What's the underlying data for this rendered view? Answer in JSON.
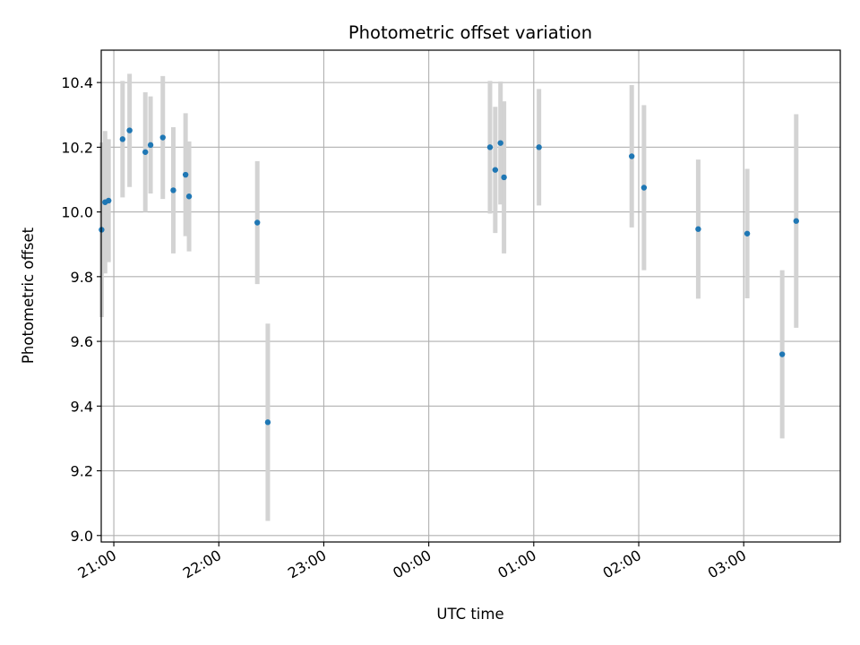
{
  "chart_data": {
    "type": "scatter",
    "title": "Photometric offset variation",
    "xlabel": "UTC time",
    "ylabel": "Photometric offset",
    "x_axis": "time",
    "x_range_hours": [
      20.88,
      27.92
    ],
    "ylim": [
      8.98,
      10.5
    ],
    "x_ticks": [
      {
        "label": "21:00",
        "hour": 21
      },
      {
        "label": "22:00",
        "hour": 22
      },
      {
        "label": "23:00",
        "hour": 23
      },
      {
        "label": "00:00",
        "hour": 24
      },
      {
        "label": "01:00",
        "hour": 25
      },
      {
        "label": "02:00",
        "hour": 26
      },
      {
        "label": "03:00",
        "hour": 27
      }
    ],
    "y_ticks": [
      "9.0",
      "9.2",
      "9.4",
      "9.6",
      "9.8",
      "10.0",
      "10.2",
      "10.4"
    ],
    "grid": true,
    "colors": {
      "points": "#1f77b4",
      "error_bars": "#d3d3d3",
      "grid": "#b0b0b0"
    },
    "points": [
      {
        "time": "20:53",
        "y": 9.945,
        "err": 0.27
      },
      {
        "time": "20:55",
        "y": 10.03,
        "err": 0.22
      },
      {
        "time": "20:57",
        "y": 10.035,
        "err": 0.19
      },
      {
        "time": "21:05",
        "y": 10.225,
        "err": 0.18
      },
      {
        "time": "21:09",
        "y": 10.252,
        "err": 0.175
      },
      {
        "time": "21:18",
        "y": 10.185,
        "err": 0.185
      },
      {
        "time": "21:21",
        "y": 10.207,
        "err": 0.15
      },
      {
        "time": "21:28",
        "y": 10.23,
        "err": 0.19
      },
      {
        "time": "21:34",
        "y": 10.067,
        "err": 0.195
      },
      {
        "time": "21:41",
        "y": 10.115,
        "err": 0.19
      },
      {
        "time": "21:43",
        "y": 10.048,
        "err": 0.17
      },
      {
        "time": "22:22",
        "y": 9.967,
        "err": 0.19
      },
      {
        "time": "22:28",
        "y": 9.35,
        "err": 0.305
      },
      {
        "time": "00:35",
        "y": 10.2,
        "err": 0.205
      },
      {
        "time": "00:38",
        "y": 10.13,
        "err": 0.195
      },
      {
        "time": "00:41",
        "y": 10.213,
        "err": 0.19
      },
      {
        "time": "00:43",
        "y": 10.107,
        "err": 0.235
      },
      {
        "time": "01:03",
        "y": 10.2,
        "err": 0.18
      },
      {
        "time": "01:56",
        "y": 10.172,
        "err": 0.22
      },
      {
        "time": "02:03",
        "y": 10.075,
        "err": 0.255
      },
      {
        "time": "02:34",
        "y": 9.947,
        "err": 0.215
      },
      {
        "time": "03:02",
        "y": 9.933,
        "err": 0.2
      },
      {
        "time": "03:22",
        "y": 9.56,
        "err": 0.26
      },
      {
        "time": "03:30",
        "y": 9.972,
        "err": 0.33
      }
    ]
  }
}
